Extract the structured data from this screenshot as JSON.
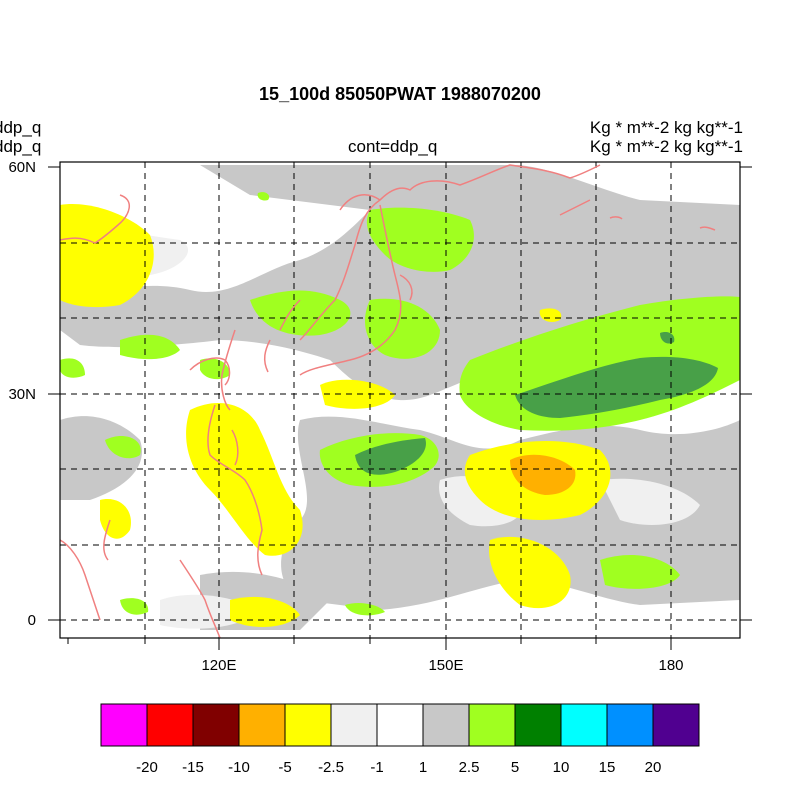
{
  "title": "15_100d 85050PWAT  1988070200",
  "left_labels": [
    "ddp_q",
    "ddp_q"
  ],
  "center_label": "cont=ddp_q",
  "units": [
    "Kg  * m**-2 kg kg**-1",
    "Kg  * m**-2 kg kg**-1"
  ],
  "map": {
    "lon_ticks": [
      "120E",
      "150E",
      "180"
    ],
    "lat_ticks": [
      "60N",
      "30N",
      "0"
    ],
    "grid": "dashed",
    "coastline_color": "#f08080"
  },
  "colorbar": {
    "colors": [
      "#ff00ff",
      "#ff0000",
      "#800000",
      "#ffb000",
      "#ffff00",
      "#f0f0f0",
      "#ffffff",
      "#c8c8c8",
      "#a0ff20",
      "#008000",
      "#00ffff",
      "#0090ff",
      "#500090"
    ],
    "labels": [
      "-20",
      "-15",
      "-10",
      "-5",
      "-2.5",
      "-1",
      "1",
      "2.5",
      "5",
      "10",
      "15",
      "20"
    ]
  }
}
